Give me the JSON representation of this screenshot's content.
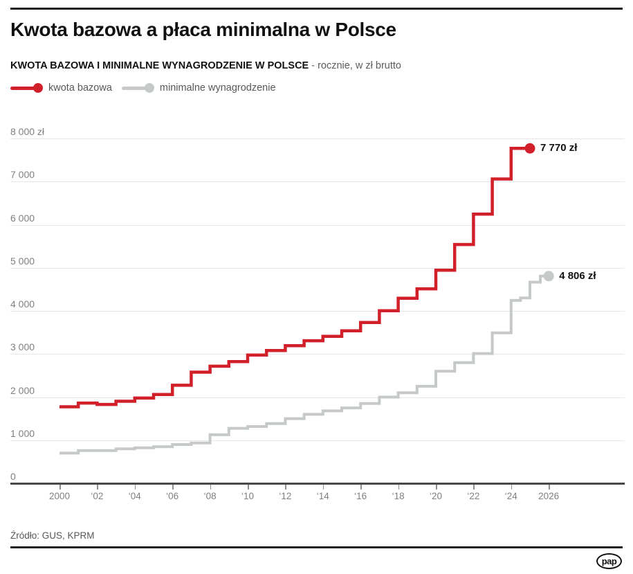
{
  "header": {
    "title": "Kwota bazowa a płaca minimalna w Polsce",
    "subtitle_bold": "KWOTA BAZOWA I MINIMALNE WYNAGRODZENIE W POLSCE",
    "subtitle_rest": " - rocznie, w zł brutto"
  },
  "legend": [
    {
      "label": "kwota bazowa",
      "color": "#d2202b"
    },
    {
      "label": "minimalne wynagrodzenie",
      "color": "#c6c9ca"
    }
  ],
  "chart_data": {
    "type": "line",
    "subtype": "step-after",
    "grid": true,
    "unit": "zł brutto",
    "xlim": [
      2000,
      2026
    ],
    "ylim": [
      0,
      8000
    ],
    "y_ticks": [
      {
        "label": "8 000 zł",
        "value": 8000
      },
      {
        "label": "7 000",
        "value": 7000
      },
      {
        "label": "6 000",
        "value": 6000
      },
      {
        "label": "5 000",
        "value": 5000
      },
      {
        "label": "4 000",
        "value": 4000
      },
      {
        "label": "3 000",
        "value": 3000
      },
      {
        "label": "2 000",
        "value": 2000
      },
      {
        "label": "1 000",
        "value": 1000
      },
      {
        "label": "0",
        "value": 0
      }
    ],
    "x_ticks": [
      {
        "label": "2000",
        "year": 2000
      },
      {
        "label": "‘02",
        "year": 2002
      },
      {
        "label": "‘04",
        "year": 2004
      },
      {
        "label": "‘06",
        "year": 2006
      },
      {
        "label": "‘08",
        "year": 2008
      },
      {
        "label": "‘10",
        "year": 2010
      },
      {
        "label": "‘12",
        "year": 2012
      },
      {
        "label": "‘14",
        "year": 2014
      },
      {
        "label": "‘16",
        "year": 2016
      },
      {
        "label": "‘18",
        "year": 2018
      },
      {
        "label": "‘20",
        "year": 2020
      },
      {
        "label": "‘22",
        "year": 2022
      },
      {
        "label": "‘24",
        "year": 2024
      },
      {
        "label": "2026",
        "year": 2026
      }
    ],
    "series": [
      {
        "name": "kwota bazowa",
        "color": "#d2202b",
        "line_width": 4.5,
        "end_x": 2025,
        "end_label": "7 770 zł",
        "points": [
          [
            2000,
            1775.89
          ],
          [
            2001,
            1862.62
          ],
          [
            2002,
            1829.24
          ],
          [
            2003,
            1903.03
          ],
          [
            2004,
            1977.2
          ],
          [
            2005,
            2059.92
          ],
          [
            2006,
            2275.37
          ],
          [
            2007,
            2578.26
          ],
          [
            2008,
            2716.71
          ],
          [
            2009,
            2822.66
          ],
          [
            2010,
            2974.69
          ],
          [
            2011,
            3080.84
          ],
          [
            2012,
            3191.93
          ],
          [
            2013,
            3308.33
          ],
          [
            2014,
            3408.62
          ],
          [
            2015,
            3536.87
          ],
          [
            2016,
            3731.13
          ],
          [
            2017,
            4003.88
          ],
          [
            2018,
            4294.67
          ],
          [
            2019,
            4512.41
          ],
          [
            2020,
            4944.79
          ],
          [
            2021,
            5540.25
          ],
          [
            2022,
            6246.13
          ],
          [
            2023,
            7060
          ],
          [
            2024,
            7770
          ]
        ]
      },
      {
        "name": "minimalne wynagrodzenie",
        "color": "#c6c9ca",
        "line_width": 4,
        "end_x": 2026,
        "end_label": "4 806 zł",
        "points": [
          [
            2000,
            700
          ],
          [
            2001,
            760
          ],
          [
            2002,
            760
          ],
          [
            2003,
            800
          ],
          [
            2004,
            824
          ],
          [
            2005,
            849
          ],
          [
            2006,
            899.1
          ],
          [
            2007,
            936
          ],
          [
            2008,
            1126
          ],
          [
            2009,
            1276
          ],
          [
            2010,
            1317
          ],
          [
            2011,
            1386
          ],
          [
            2012,
            1500
          ],
          [
            2013,
            1600
          ],
          [
            2014,
            1680
          ],
          [
            2015,
            1750
          ],
          [
            2016,
            1850
          ],
          [
            2017,
            2000
          ],
          [
            2018,
            2100
          ],
          [
            2019,
            2250
          ],
          [
            2020,
            2600
          ],
          [
            2021,
            2800
          ],
          [
            2022,
            3010
          ],
          [
            2023,
            3490
          ],
          [
            2024,
            4242
          ],
          [
            2024.5,
            4300
          ],
          [
            2025,
            4666
          ],
          [
            2025.55,
            4806
          ]
        ]
      }
    ]
  },
  "footer": {
    "source": "Źródło: GUS, KPRM",
    "logo_text": "pap"
  }
}
